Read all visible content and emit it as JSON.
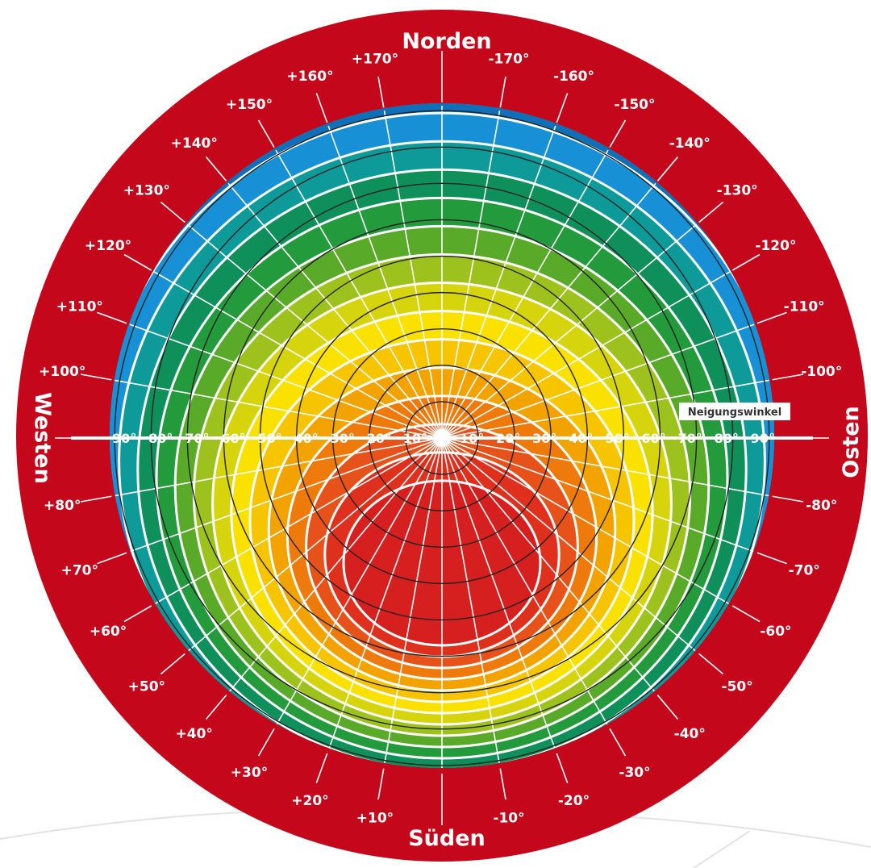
{
  "directions": {
    "north": "Norden",
    "south": "Süden",
    "west": "Westen",
    "east": "Osten"
  },
  "axis_title": "Neigungswinkel",
  "tilt_labels": {
    "west": [
      "90°",
      "80°",
      "70°",
      "60°",
      "50°",
      "40°",
      "30°",
      "20°",
      "10°"
    ],
    "east": [
      "10°",
      "20°",
      "30°",
      "40°",
      "50°",
      "60°",
      "70°",
      "80°",
      "90°"
    ]
  },
  "azimuth_labels": [
    {
      "azimuth": -10,
      "text": "-10°"
    },
    {
      "azimuth": -20,
      "text": "-20°"
    },
    {
      "azimuth": -30,
      "text": "-30°"
    },
    {
      "azimuth": -40,
      "text": "-40°"
    },
    {
      "azimuth": -50,
      "text": "-50°"
    },
    {
      "azimuth": -60,
      "text": "-60°"
    },
    {
      "azimuth": -70,
      "text": "-70°"
    },
    {
      "azimuth": -80,
      "text": "-80°"
    },
    {
      "azimuth": -100,
      "text": "-100°"
    },
    {
      "azimuth": -110,
      "text": "-110°"
    },
    {
      "azimuth": -120,
      "text": "-120°"
    },
    {
      "azimuth": -130,
      "text": "-130°"
    },
    {
      "azimuth": -140,
      "text": "-140°"
    },
    {
      "azimuth": -150,
      "text": "-150°"
    },
    {
      "azimuth": -160,
      "text": "-160°"
    },
    {
      "azimuth": -170,
      "text": "-170°"
    },
    {
      "azimuth": 170,
      "text": "+170°"
    },
    {
      "azimuth": 160,
      "text": "+160°"
    },
    {
      "azimuth": 150,
      "text": "+150°"
    },
    {
      "azimuth": 140,
      "text": "+140°"
    },
    {
      "azimuth": 130,
      "text": "+130°"
    },
    {
      "azimuth": 120,
      "text": "+120°"
    },
    {
      "azimuth": 110,
      "text": "+110°"
    },
    {
      "azimuth": 100,
      "text": "+100°"
    },
    {
      "azimuth": 80,
      "text": "+80°"
    },
    {
      "azimuth": 70,
      "text": "+70°"
    },
    {
      "azimuth": 60,
      "text": "+60°"
    },
    {
      "azimuth": 50,
      "text": "+50°"
    },
    {
      "azimuth": 40,
      "text": "+40°"
    },
    {
      "azimuth": 30,
      "text": "+30°"
    },
    {
      "azimuth": 20,
      "text": "+20°"
    },
    {
      "azimuth": 10,
      "text": "+10°"
    }
  ],
  "colors": {
    "ring": "#c4071b",
    "bands_north_to_south": [
      "#0a4f9e",
      "#0f6fb8",
      "#1890d5",
      "#0f9a9a",
      "#0f8f5a",
      "#239a3c",
      "#5aaa2a",
      "#9ec21d",
      "#d6d40c",
      "#fbe100",
      "#f7c400",
      "#f3a300",
      "#ee7a0c",
      "#e6521a",
      "#df2f1d",
      "#d61f1f"
    ]
  }
}
